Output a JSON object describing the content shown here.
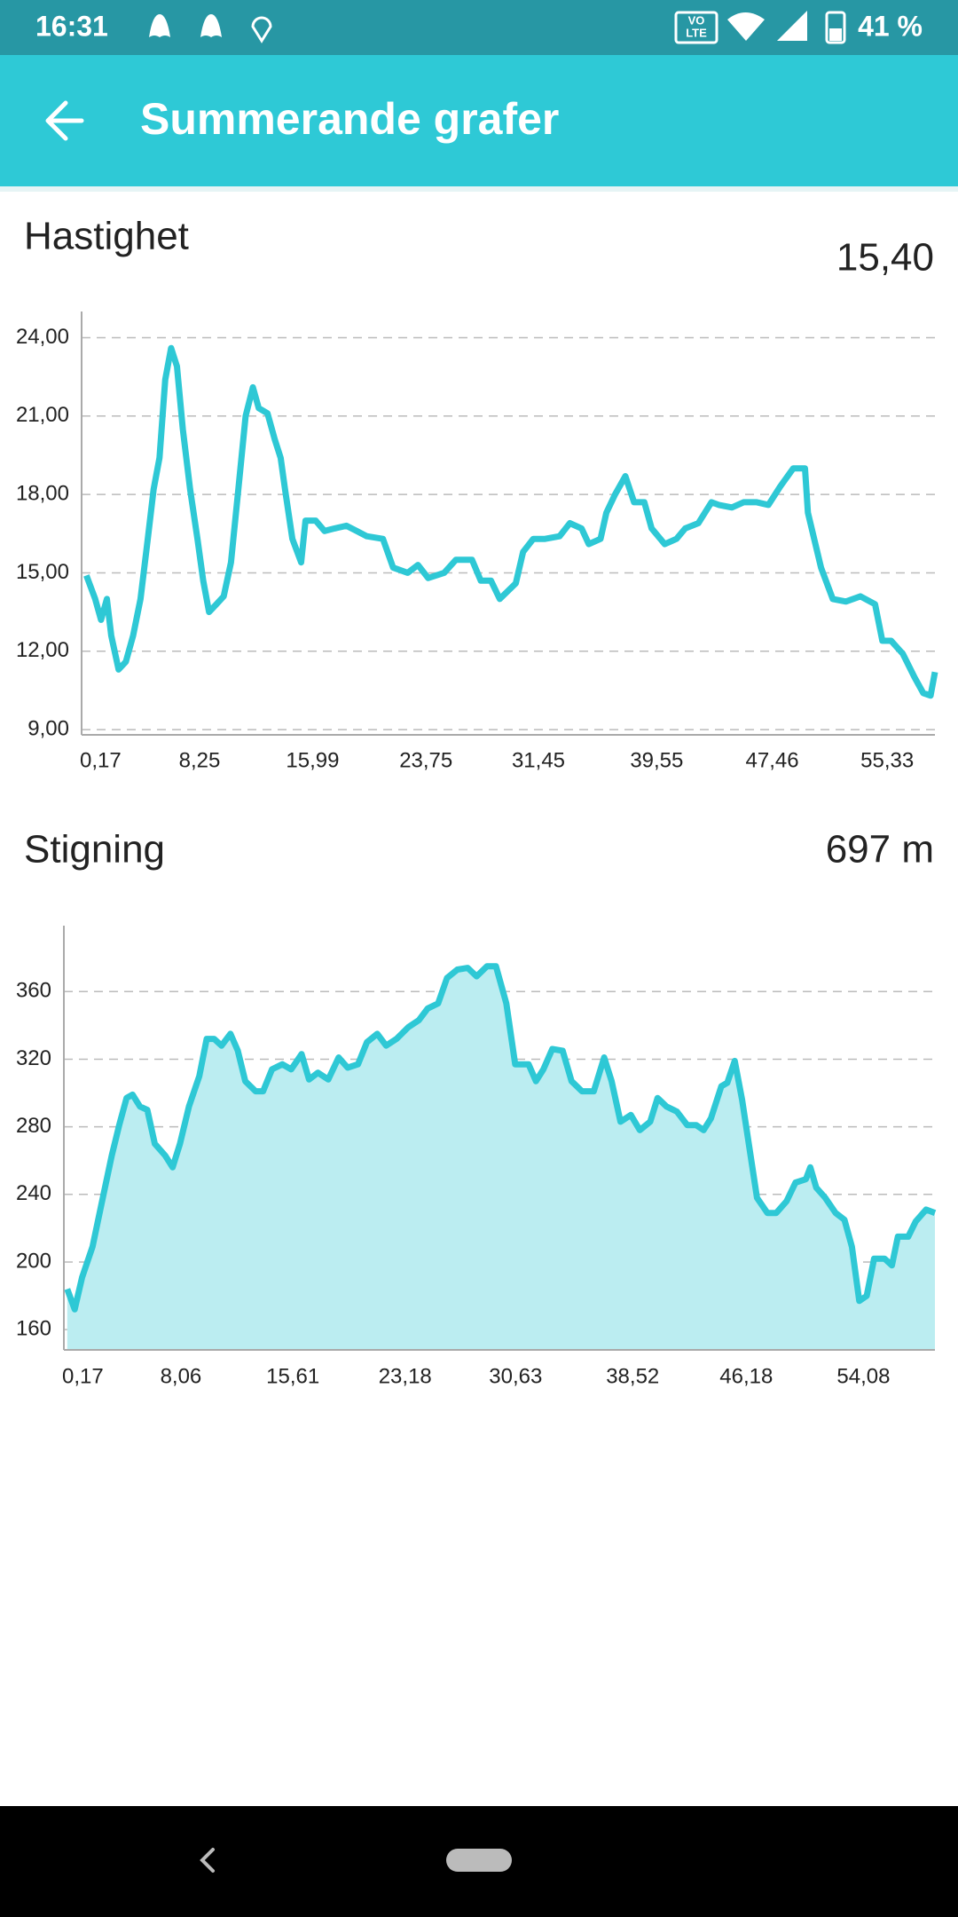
{
  "status_bar": {
    "time": "16:31",
    "network": [
      "VO",
      "LTE"
    ],
    "battery": "41 %"
  },
  "app_bar": {
    "title": "Summerande grafer"
  },
  "chart_data": [
    {
      "type": "line",
      "title": "Hastighet",
      "summary": "15,40",
      "color": "#2ec8d5",
      "grid": true,
      "xlim": [
        0.17,
        58.6
      ],
      "ylim": [
        8.8,
        25
      ],
      "xticks": [
        {
          "value": 0.17,
          "label": "0,17"
        },
        {
          "value": 8.25,
          "label": "8,25"
        },
        {
          "value": 15.99,
          "label": "15,99"
        },
        {
          "value": 23.75,
          "label": "23,75"
        },
        {
          "value": 31.45,
          "label": "31,45"
        },
        {
          "value": 39.55,
          "label": "39,55"
        },
        {
          "value": 47.46,
          "label": "47,46"
        },
        {
          "value": 55.33,
          "label": "55,33"
        }
      ],
      "yticks": [
        {
          "value": 9,
          "label": "9,00"
        },
        {
          "value": 12,
          "label": "12,00"
        },
        {
          "value": 15,
          "label": "15,00"
        },
        {
          "value": 18,
          "label": "18,00"
        },
        {
          "value": 21,
          "label": "21,00"
        },
        {
          "value": 24,
          "label": "24,00"
        }
      ],
      "x": [
        0.5,
        1.1,
        1.5,
        1.9,
        2.2,
        2.7,
        3.2,
        3.7,
        4.2,
        4.7,
        5.1,
        5.5,
        5.9,
        6.3,
        6.7,
        7.1,
        7.6,
        8.1,
        8.5,
        8.9,
        9.4,
        9.9,
        10.4,
        10.9,
        11.4,
        11.9,
        12.3,
        12.9,
        13.4,
        13.8,
        14.1,
        14.6,
        15.2,
        15.5,
        16.2,
        16.8,
        17.5,
        18.3,
        19.0,
        19.7,
        20.8,
        21.5,
        22.5,
        23.2,
        23.9,
        25.0,
        25.8,
        26.9,
        27.5,
        28.2,
        28.8,
        29.9,
        30.4,
        31.1,
        31.9,
        32.9,
        33.6,
        34.4,
        34.9,
        35.7,
        36.1,
        36.7,
        37.4,
        38.0,
        38.7,
        39.2,
        40.1,
        40.9,
        41.5,
        42.4,
        43.3,
        43.8,
        44.7,
        45.5,
        46.4,
        47.2,
        48.0,
        48.9,
        49.7,
        49.9,
        50.8,
        51.6,
        52.5,
        53.5,
        54.5,
        55.0,
        55.6,
        56.4,
        57.2,
        57.8,
        58.3,
        58.6
      ],
      "values": [
        14.9,
        14.0,
        13.2,
        14.0,
        12.6,
        11.3,
        11.6,
        12.6,
        14.0,
        16.3,
        18.2,
        19.4,
        22.4,
        23.6,
        22.9,
        20.5,
        18.2,
        16.3,
        14.7,
        13.5,
        13.8,
        14.1,
        15.4,
        18.2,
        21.0,
        22.1,
        21.3,
        21.1,
        20.1,
        19.4,
        18.2,
        16.3,
        15.4,
        17.0,
        17.0,
        16.6,
        16.7,
        16.8,
        16.6,
        16.4,
        16.3,
        15.2,
        15.0,
        15.3,
        14.8,
        15.0,
        15.5,
        15.5,
        14.7,
        14.7,
        14.0,
        14.6,
        15.8,
        16.3,
        16.3,
        16.4,
        16.9,
        16.7,
        16.1,
        16.3,
        17.3,
        18.0,
        18.7,
        17.7,
        17.7,
        16.7,
        16.1,
        16.3,
        16.7,
        16.9,
        17.7,
        17.6,
        17.5,
        17.7,
        17.7,
        17.6,
        18.3,
        19.0,
        19.0,
        17.3,
        15.2,
        14.0,
        13.9,
        14.1,
        13.8,
        12.4,
        12.4,
        11.9,
        11.0,
        10.4,
        10.3,
        11.2
      ]
    },
    {
      "type": "area",
      "title": "Stigning",
      "summary": "697 m",
      "color": "#2ec8d5",
      "fill": "#bbedf1",
      "grid": true,
      "xlim": [
        0.17,
        58.9
      ],
      "ylim": [
        148,
        399
      ],
      "xticks": [
        {
          "value": 0.17,
          "label": "0,17"
        },
        {
          "value": 8.06,
          "label": "8,06"
        },
        {
          "value": 15.61,
          "label": "15,61"
        },
        {
          "value": 23.18,
          "label": "23,18"
        },
        {
          "value": 30.63,
          "label": "30,63"
        },
        {
          "value": 38.52,
          "label": "38,52"
        },
        {
          "value": 46.18,
          "label": "46,18"
        },
        {
          "value": 54.08,
          "label": "54,08"
        }
      ],
      "yticks": [
        160,
        200,
        240,
        280,
        320,
        360
      ],
      "x": [
        0.4,
        0.9,
        1.4,
        2.1,
        2.7,
        3.4,
        3.9,
        4.4,
        4.8,
        5.3,
        5.8,
        6.3,
        7.0,
        7.5,
        8.0,
        8.6,
        9.3,
        9.8,
        10.3,
        10.8,
        11.4,
        11.9,
        12.4,
        13.1,
        13.6,
        14.2,
        14.9,
        15.5,
        16.2,
        16.7,
        17.3,
        18.0,
        18.7,
        19.3,
        20.0,
        20.6,
        21.3,
        21.9,
        22.6,
        23.4,
        24.1,
        24.7,
        25.4,
        26.0,
        26.7,
        27.4,
        28.0,
        28.7,
        29.3,
        30.0,
        30.6,
        31.5,
        32.0,
        32.5,
        33.1,
        33.8,
        34.4,
        35.1,
        35.9,
        36.6,
        37.1,
        37.7,
        38.4,
        39.0,
        39.7,
        40.2,
        40.8,
        41.5,
        42.2,
        42.8,
        43.3,
        43.8,
        44.5,
        44.9,
        45.4,
        45.9,
        46.4,
        46.9,
        47.6,
        48.2,
        48.9,
        49.5,
        50.2,
        50.5,
        50.9,
        51.5,
        52.2,
        52.8,
        53.3,
        53.8,
        54.3,
        54.8,
        55.5,
        56.0,
        56.4,
        57.1,
        57.6,
        58.3,
        58.9
      ],
      "values": [
        184,
        172,
        191,
        209,
        234,
        263,
        281,
        297,
        299,
        292,
        290,
        270,
        263,
        256,
        270,
        292,
        310,
        332,
        332,
        328,
        335,
        325,
        307,
        301,
        301,
        314,
        317,
        314,
        323,
        308,
        312,
        308,
        321,
        315,
        317,
        330,
        335,
        328,
        332,
        339,
        343,
        350,
        353,
        368,
        373,
        374,
        369,
        375,
        375,
        353,
        317,
        317,
        307,
        314,
        326,
        325,
        307,
        301,
        301,
        321,
        307,
        283,
        287,
        278,
        283,
        297,
        292,
        289,
        281,
        281,
        278,
        285,
        304,
        306,
        319,
        296,
        267,
        238,
        229,
        229,
        236,
        247,
        249,
        256,
        244,
        238,
        229,
        225,
        209,
        177,
        180,
        202,
        202,
        198,
        215,
        215,
        224,
        231,
        229
      ]
    }
  ]
}
